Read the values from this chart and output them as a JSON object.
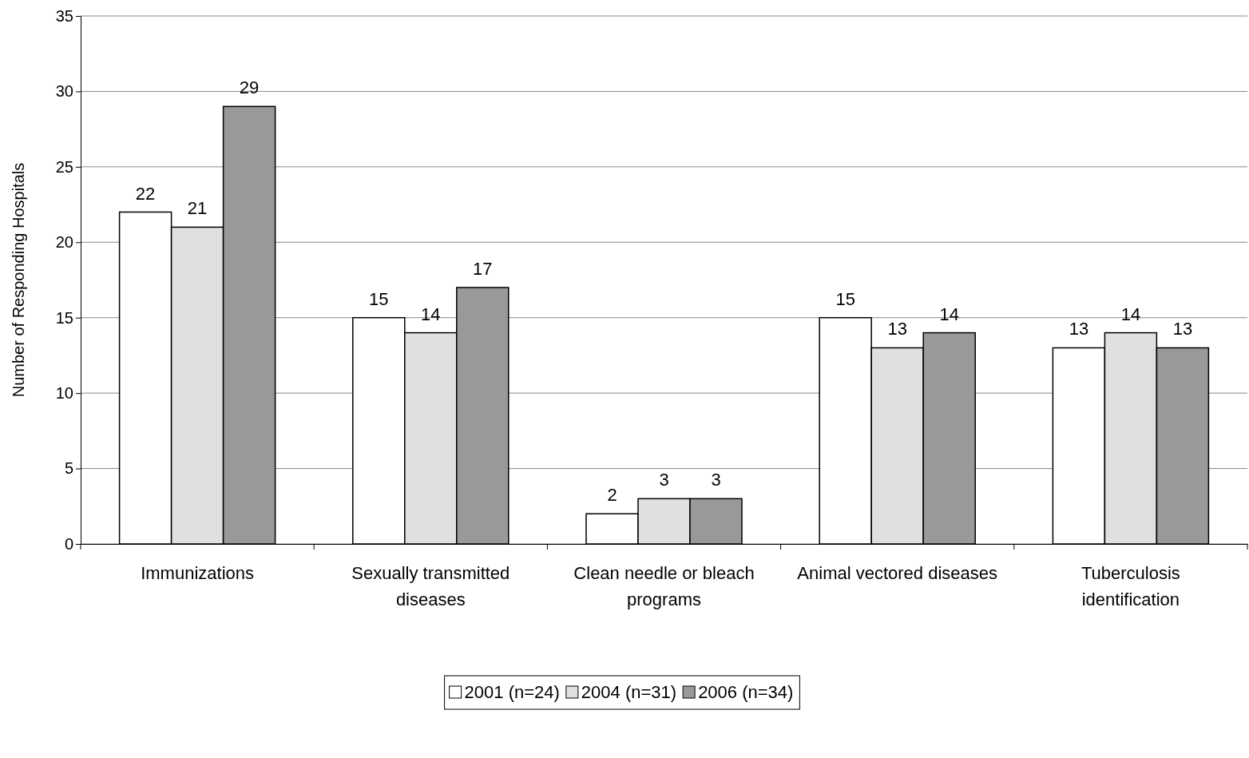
{
  "chart_data": {
    "type": "bar",
    "ylabel": "Number of Responding Hospitals",
    "categories": [
      "Immunizations",
      "Sexually transmitted diseases",
      "Clean needle or bleach programs",
      "Animal vectored diseases",
      "Tuberculosis identification"
    ],
    "series": [
      {
        "name": "2001 (n=24)",
        "color": "#ffffff",
        "values": [
          22,
          15,
          2,
          15,
          13
        ]
      },
      {
        "name": "2004 (n=31)",
        "color": "#e0e0e0",
        "values": [
          21,
          14,
          3,
          13,
          14
        ]
      },
      {
        "name": "2006 (n=34)",
        "color": "#999999",
        "values": [
          29,
          17,
          3,
          14,
          13
        ]
      }
    ],
    "ylim": [
      0,
      35
    ],
    "yticks": [
      0,
      5,
      10,
      15,
      20,
      25,
      30,
      35
    ],
    "grid": "y",
    "legend": "bottom",
    "data_labels": true
  }
}
